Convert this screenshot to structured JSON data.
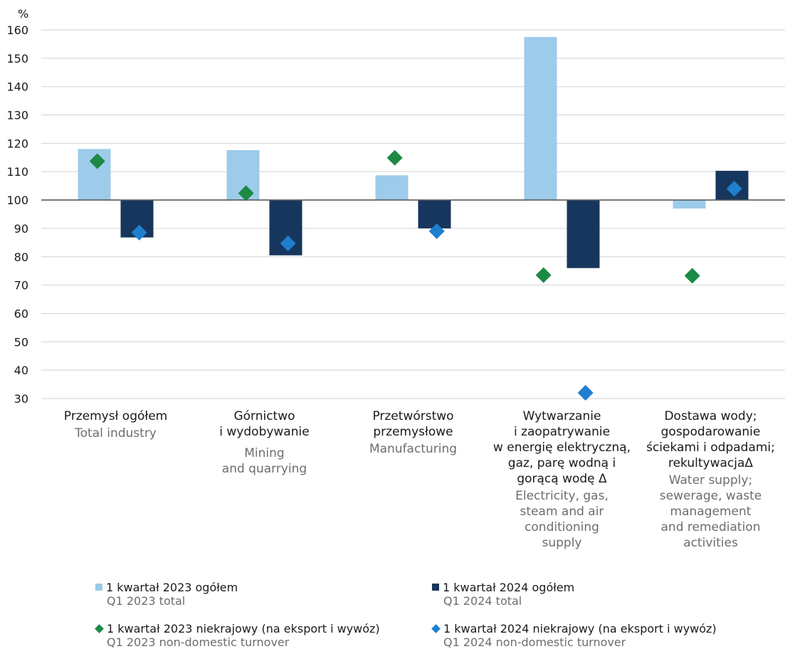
{
  "chart_data": {
    "type": "bar",
    "ylabel": "%",
    "ylim": [
      30,
      160
    ],
    "yticks": [
      30,
      40,
      50,
      60,
      70,
      80,
      90,
      100,
      110,
      120,
      130,
      140,
      150,
      160
    ],
    "baseline": 100,
    "grid": true,
    "categories": [
      {
        "pl": [
          "Przemysł ogółem"
        ],
        "en": [
          "Total industry"
        ]
      },
      {
        "pl": [
          "Górnictwo",
          "i wydobywanie"
        ],
        "en": [
          "Mining",
          "and quarrying"
        ]
      },
      {
        "pl": [
          "Przetwórstwo",
          "przemysłowe"
        ],
        "en": [
          "Manufacturing"
        ]
      },
      {
        "pl": [
          "Wytwarzanie",
          "i zaopatrywanie",
          "w energię elektryczną,",
          "gaz, parę wodną i",
          "gorącą wodę Δ"
        ],
        "en": [
          "Electricity, gas,",
          "steam and air",
          "conditioning",
          "supply"
        ]
      },
      {
        "pl": [
          "Dostawa wody;",
          "gospodarowanie",
          "ściekami i odpadami;",
          "rekultywacjaΔ"
        ],
        "en": [
          "Water supply;",
          "sewerage, waste",
          "management",
          "and remediation",
          "activities"
        ]
      }
    ],
    "series": [
      {
        "name_pl": "1 kwartał 2023 ogółem",
        "name_en": "Q1 2023 total",
        "kind": "bar",
        "color": "#9dcbea",
        "values": [
          118,
          117.6,
          108.7,
          157.5,
          97
        ]
      },
      {
        "name_pl": "1 kwartał 2024 ogółem",
        "name_en": "Q1 2024 total",
        "kind": "bar",
        "color": "#17365d",
        "values": [
          86.8,
          80.5,
          90,
          76,
          110.3
        ]
      },
      {
        "name_pl": "1 kwartał 2023 niekrajowy (na eksport i wywóz)",
        "name_en": "Q1 2023 non-domestic turnover",
        "kind": "marker",
        "color": "#1a8a45",
        "values": [
          113.7,
          102.4,
          114.9,
          73.5,
          73.3
        ]
      },
      {
        "name_pl": "1 kwartał 2024 niekrajowy (na eksport i wywóz)",
        "name_en": "Q1 2024 non-domestic turnover",
        "kind": "marker",
        "color": "#1f7fcf",
        "values": [
          88.5,
          84.7,
          89,
          32,
          104
        ]
      }
    ]
  }
}
